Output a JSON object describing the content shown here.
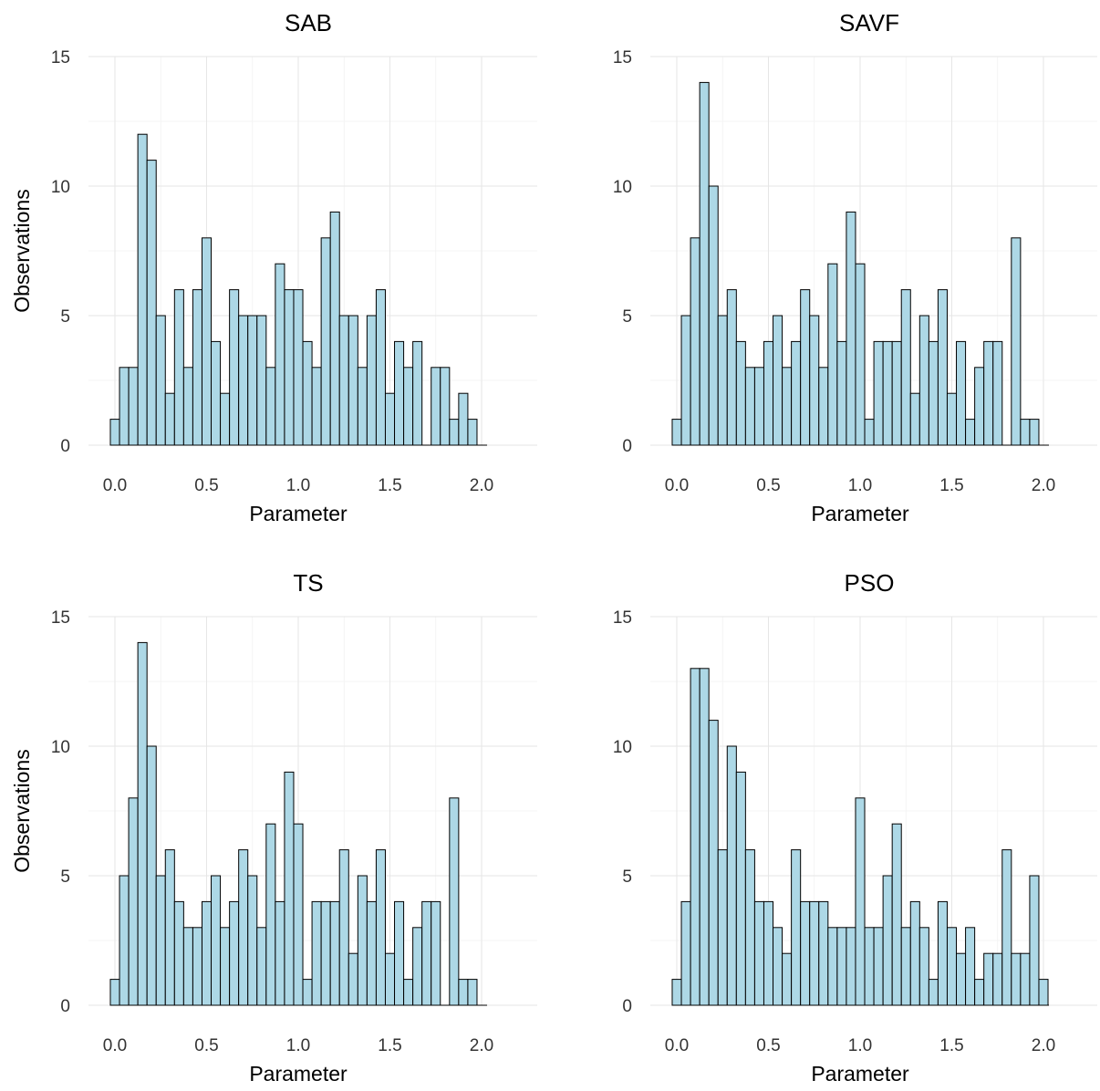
{
  "chart_data": [
    {
      "type": "bar",
      "title": "SAB",
      "xlabel": "Parameter",
      "ylabel": "Observations",
      "bin_start": 0.0,
      "bin_width": 0.05,
      "values": [
        1,
        3,
        3,
        12,
        11,
        5,
        2,
        6,
        3,
        6,
        8,
        4,
        2,
        6,
        5,
        5,
        5,
        3,
        7,
        6,
        6,
        4,
        3,
        8,
        9,
        5,
        5,
        3,
        5,
        6,
        2,
        4,
        3,
        4,
        0,
        3,
        3,
        1,
        2,
        1
      ],
      "xlim": [
        -0.05,
        2.05
      ],
      "ylim": [
        0,
        15
      ],
      "xticks": [
        "0.0",
        "0.5",
        "1.0",
        "1.5",
        "2.0"
      ],
      "yticks": [
        "0",
        "5",
        "10",
        "15"
      ],
      "grid": true
    },
    {
      "type": "bar",
      "title": "SAVF",
      "xlabel": "Parameter",
      "ylabel": "",
      "bin_start": 0.0,
      "bin_width": 0.05,
      "values": [
        1,
        5,
        8,
        14,
        10,
        5,
        6,
        4,
        3,
        3,
        4,
        5,
        3,
        4,
        6,
        5,
        3,
        7,
        4,
        9,
        7,
        1,
        4,
        4,
        4,
        6,
        2,
        5,
        4,
        6,
        2,
        4,
        1,
        3,
        4,
        4,
        0,
        8,
        1,
        1
      ],
      "xlim": [
        -0.05,
        2.05
      ],
      "ylim": [
        0,
        15
      ],
      "xticks": [
        "0.0",
        "0.5",
        "1.0",
        "1.5",
        "2.0"
      ],
      "yticks": [
        "0",
        "5",
        "10",
        "15"
      ],
      "grid": true
    },
    {
      "type": "bar",
      "title": "TS",
      "xlabel": "Parameter",
      "ylabel": "Observations",
      "bin_start": 0.0,
      "bin_width": 0.05,
      "values": [
        1,
        5,
        8,
        14,
        10,
        5,
        6,
        4,
        3,
        3,
        4,
        5,
        3,
        4,
        6,
        5,
        3,
        7,
        4,
        9,
        7,
        1,
        4,
        4,
        4,
        6,
        2,
        5,
        4,
        6,
        2,
        4,
        1,
        3,
        4,
        4,
        0,
        8,
        1,
        1
      ],
      "xlim": [
        -0.05,
        2.05
      ],
      "ylim": [
        0,
        15
      ],
      "xticks": [
        "0.0",
        "0.5",
        "1.0",
        "1.5",
        "2.0"
      ],
      "yticks": [
        "0",
        "5",
        "10",
        "15"
      ],
      "grid": true
    },
    {
      "type": "bar",
      "title": "PSO",
      "xlabel": "Parameter",
      "ylabel": "",
      "bin_start": 0.0,
      "bin_width": 0.05,
      "values": [
        1,
        4,
        13,
        13,
        11,
        6,
        10,
        9,
        6,
        4,
        4,
        3,
        2,
        6,
        4,
        4,
        4,
        3,
        3,
        3,
        8,
        3,
        3,
        5,
        7,
        3,
        4,
        3,
        1,
        4,
        3,
        2,
        3,
        1,
        2,
        2,
        6,
        2,
        2,
        5,
        1
      ],
      "xlim": [
        -0.05,
        2.05
      ],
      "ylim": [
        0,
        15
      ],
      "xticks": [
        "0.0",
        "0.5",
        "1.0",
        "1.5",
        "2.0"
      ],
      "yticks": [
        "0",
        "5",
        "10",
        "15"
      ],
      "grid": true
    }
  ],
  "colors": {
    "bar_fill": "#add8e6",
    "bar_stroke": "#000000",
    "background": "#ffffff"
  }
}
